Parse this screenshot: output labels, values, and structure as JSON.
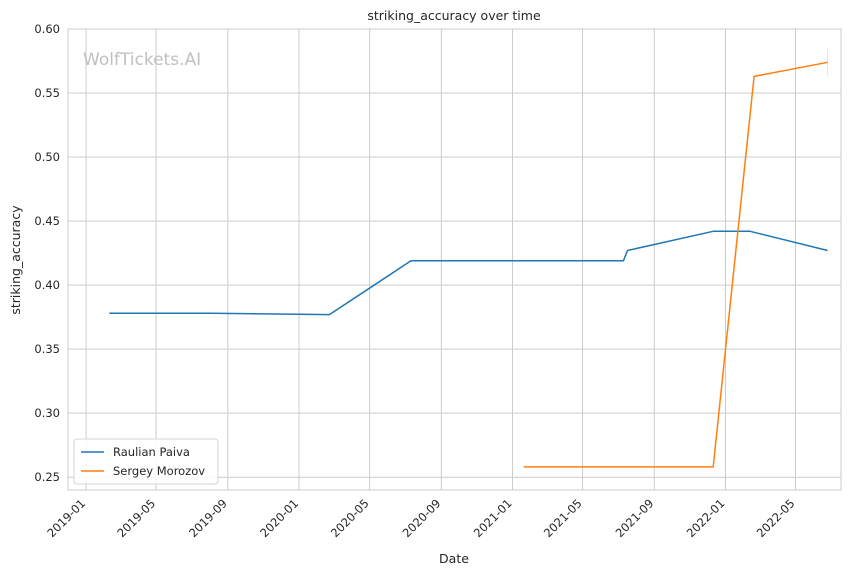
{
  "chart_data": {
    "type": "line",
    "title": "striking_accuracy over time",
    "xlabel": "Date",
    "ylabel": "striking_accuracy",
    "watermark": "WolfTickets.AI",
    "xlim": [
      "2018-12-01",
      "2022-07-18"
    ],
    "ylim": [
      0.24,
      0.6
    ],
    "x_ticks": [
      "2019-01",
      "2019-05",
      "2019-09",
      "2020-01",
      "2020-05",
      "2020-09",
      "2021-01",
      "2021-05",
      "2021-09",
      "2022-01",
      "2022-05"
    ],
    "y_ticks": [
      "0.25",
      "0.30",
      "0.35",
      "0.40",
      "0.45",
      "0.50",
      "0.55",
      "0.60"
    ],
    "grid": true,
    "legend_position": "lower-left",
    "series": [
      {
        "name": "Raulian Paiva",
        "color": "#1f77b4",
        "points": [
          {
            "x": "2019-02-10",
            "y": 0.378
          },
          {
            "x": "2019-08-03",
            "y": 0.378
          },
          {
            "x": "2020-02-22",
            "y": 0.377
          },
          {
            "x": "2020-07-11",
            "y": 0.419
          },
          {
            "x": "2021-07-10",
            "y": 0.419
          },
          {
            "x": "2021-07-17",
            "y": 0.427
          },
          {
            "x": "2021-12-11",
            "y": 0.442
          },
          {
            "x": "2022-02-12",
            "y": 0.442
          },
          {
            "x": "2022-06-25",
            "y": 0.427
          }
        ]
      },
      {
        "name": "Sergey Morozov",
        "color": "#ff7f0e",
        "points": [
          {
            "x": "2021-01-20",
            "y": 0.258
          },
          {
            "x": "2021-12-11",
            "y": 0.258
          },
          {
            "x": "2022-02-19",
            "y": 0.563
          },
          {
            "x": "2022-06-25",
            "y": 0.574
          }
        ]
      }
    ]
  }
}
